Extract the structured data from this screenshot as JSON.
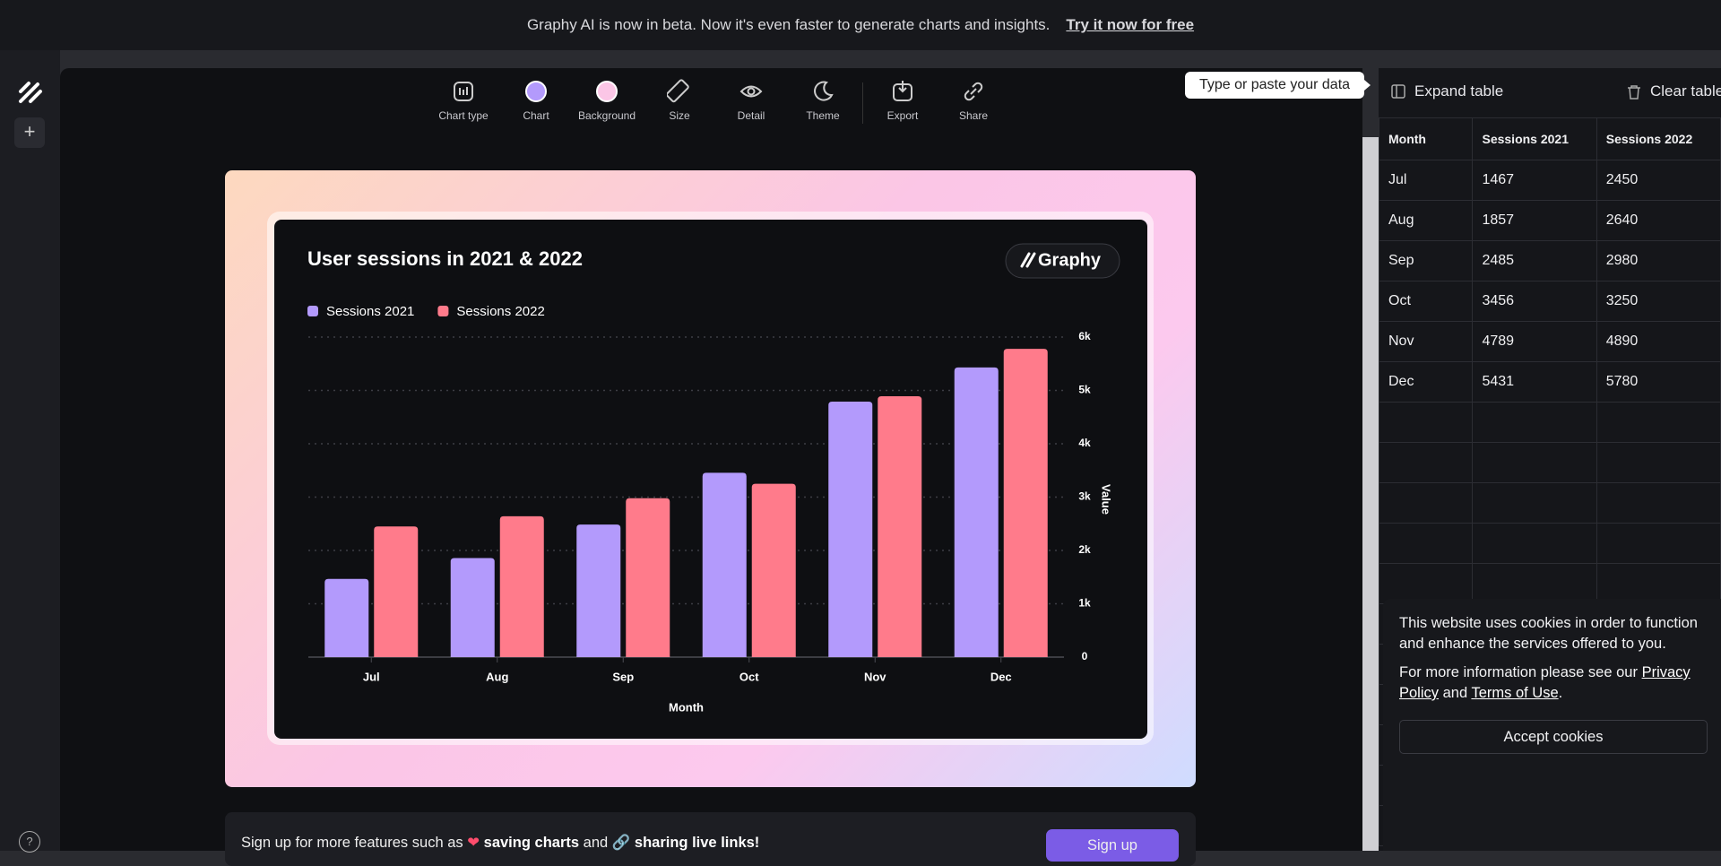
{
  "banner": {
    "text": "Graphy AI is now in beta. Now it's even faster to generate charts and insights.",
    "link": "Try it now for free"
  },
  "toolbar": [
    "Chart type",
    "Chart",
    "Background",
    "Size",
    "Detail",
    "Theme",
    "Export",
    "Share"
  ],
  "badge": "Graphy",
  "chart_data": {
    "type": "bar",
    "title": "User sessions in 2021 & 2022",
    "categories": [
      "Jul",
      "Aug",
      "Sep",
      "Oct",
      "Nov",
      "Dec"
    ],
    "series": [
      {
        "name": "Sessions 2021",
        "color": "#b39afc",
        "values": [
          1467,
          1857,
          2485,
          3456,
          4789,
          5431
        ]
      },
      {
        "name": "Sessions 2022",
        "color": "#ff7b8b",
        "values": [
          2450,
          2640,
          2980,
          3250,
          4890,
          5780
        ]
      }
    ],
    "ylim": [
      0,
      6000
    ],
    "yticks": [
      0,
      {
        "value": 1000,
        "label": "1k"
      },
      {
        "value": 2000,
        "label": "2k"
      },
      {
        "value": 3000,
        "label": "3k"
      },
      {
        "value": 4000,
        "label": "4k"
      },
      {
        "value": 5000,
        "label": "5k"
      },
      {
        "value": 6000,
        "label": "6k"
      }
    ],
    "x_label": "Month",
    "y_label": "Value",
    "grid": true,
    "legend": "top-left"
  },
  "tooltip": "Type or paste your data",
  "table_tools": {
    "expand": "Expand table",
    "clear": "Clear table"
  },
  "cookie": {
    "text": "This website uses cookies in order to function and enhance the services offered to you.",
    "more": "For more information please see our",
    "privacy": "Privacy Policy",
    "and": "and",
    "terms": "Terms of Use",
    "end": ".",
    "accept": "Accept cookies"
  },
  "signup": {
    "lead": "Sign up for more features such as",
    "f1": "saving charts",
    "and": "and",
    "f2": "sharing live links!",
    "button": "Sign up"
  }
}
